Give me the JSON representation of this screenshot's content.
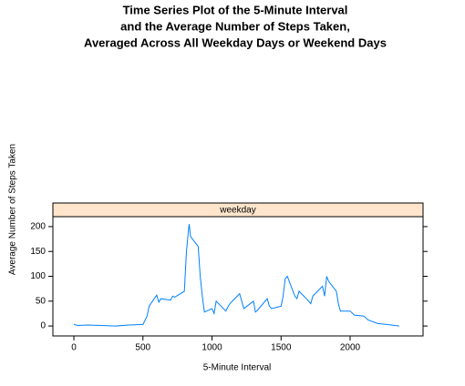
{
  "chart_data": {
    "type": "line",
    "title": [
      "Time Series Plot of the 5-Minute Interval",
      "and the Average Number of Steps Taken,",
      "Averaged Across All Weekday Days or Weekend Days"
    ],
    "panel": "weekday",
    "xlabel": "5-Minute Interval",
    "ylabel": "Average Number of Steps Taken",
    "x": [
      0,
      30,
      100,
      200,
      300,
      400,
      500,
      530,
      545,
      600,
      615,
      630,
      700,
      715,
      730,
      800,
      815,
      830,
      835,
      845,
      900,
      915,
      930,
      945,
      1000,
      1015,
      1030,
      1100,
      1115,
      1130,
      1200,
      1215,
      1230,
      1300,
      1315,
      1330,
      1400,
      1415,
      1430,
      1500,
      1515,
      1530,
      1545,
      1600,
      1615,
      1630,
      1700,
      1715,
      1730,
      1800,
      1815,
      1830,
      1845,
      1900,
      1915,
      1930,
      2000,
      2030,
      2100,
      2130,
      2200,
      2300,
      2355
    ],
    "series": [
      {
        "name": "weekday",
        "color": "#0080ff",
        "values": [
          3,
          1,
          2,
          1,
          0,
          2,
          3,
          20,
          40,
          62,
          48,
          55,
          52,
          60,
          58,
          70,
          150,
          195,
          205,
          180,
          160,
          100,
          60,
          28,
          35,
          25,
          50,
          30,
          38,
          45,
          65,
          50,
          35,
          50,
          28,
          32,
          55,
          40,
          35,
          40,
          60,
          95,
          100,
          60,
          55,
          70,
          50,
          45,
          60,
          80,
          60,
          100,
          90,
          70,
          45,
          30,
          30,
          22,
          20,
          12,
          5,
          2,
          0
        ]
      }
    ],
    "xlim": [
      -152,
      2528
    ],
    "ylim": [
      -20,
      220
    ],
    "xticks": [
      0,
      500,
      1000,
      1500,
      2000
    ],
    "yticks": [
      0,
      50,
      100,
      150,
      200
    ]
  }
}
